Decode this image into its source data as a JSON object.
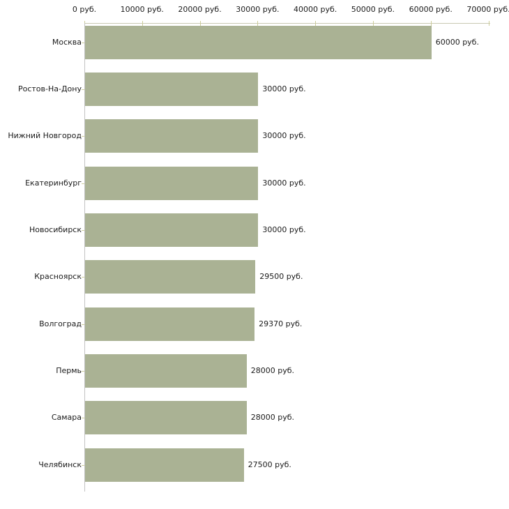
{
  "chart_data": {
    "type": "bar",
    "orientation": "horizontal",
    "title": "",
    "unit_suffix": " руб.",
    "categories": [
      "Москва",
      "Ростов-На-Дону",
      "Нижний Новгород",
      "Екатеринбург",
      "Новосибирск",
      "Красноярск",
      "Волгоград",
      "Пермь",
      "Самара",
      "Челябинск"
    ],
    "values": [
      60000,
      30000,
      30000,
      30000,
      30000,
      29500,
      29370,
      28000,
      28000,
      27500
    ],
    "value_labels": [
      "60000 руб.",
      "30000 руб.",
      "30000 руб.",
      "30000 руб.",
      "30000 руб.",
      "29500 руб.",
      "29370 руб.",
      "28000 руб.",
      "28000 руб.",
      "27500 руб."
    ],
    "x_axis": {
      "position": "top",
      "ticks": [
        0,
        10000,
        20000,
        30000,
        40000,
        50000,
        60000,
        70000
      ],
      "tick_labels": [
        "0 руб.",
        "10000 руб.",
        "20000 руб.",
        "30000 руб.",
        "40000 руб.",
        "50000 руб.",
        "60000 руб.",
        "70000 руб."
      ],
      "min": 0,
      "max": 70000
    },
    "grid": false,
    "legend": false,
    "colors": {
      "bar_fill": "#aab294",
      "top_axis_line": "#c9c9b2",
      "tick_mark": "#cccc99",
      "category_tick": "#cfcf9e",
      "left_axis_line": "#c2c2c2",
      "text": "#1a1a1a",
      "background": "#ffffff"
    }
  }
}
